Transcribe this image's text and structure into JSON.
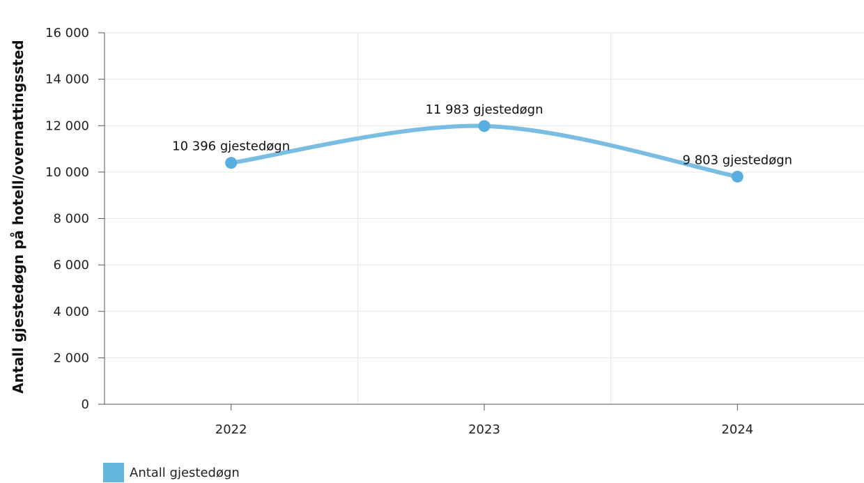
{
  "chart_data": {
    "type": "line",
    "categories": [
      "2022",
      "2023",
      "2024"
    ],
    "series": [
      {
        "name": "Antall gjestedøgn",
        "values": [
          10396,
          11983,
          9803
        ],
        "data_labels": [
          "10 396 gjestedøgn",
          "11 983 gjestedøgn",
          "9 803 gjestedøgn"
        ],
        "color": "#79bde3",
        "marker_color": "#5aaedf"
      }
    ],
    "ylabel": "Antall gjestedøgn på hotell/overnattingssted",
    "xlabel": "",
    "ylim": [
      0,
      16000
    ],
    "yticks": [
      0,
      2000,
      4000,
      6000,
      8000,
      10000,
      12000,
      14000,
      16000
    ],
    "ytick_labels": [
      "0",
      "2 000",
      "4 000",
      "6 000",
      "8 000",
      "10 000",
      "12 000",
      "14 000",
      "16 000"
    ],
    "grid": true,
    "smooth": true,
    "legend_position": "bottom-left",
    "legend_swatch_color": "#64b5dc"
  }
}
